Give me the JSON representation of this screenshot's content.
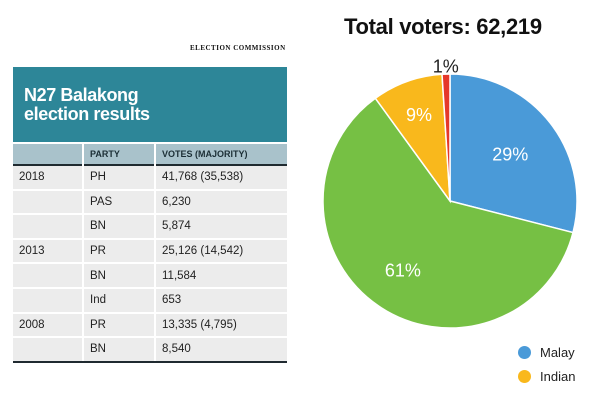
{
  "source": "ELECTION COMMISSION",
  "table": {
    "title_line1": "N27 Balakong",
    "title_line2": "election results",
    "headers": [
      "",
      "PARTY",
      "VOTES (MAJORITY)"
    ],
    "rows": [
      {
        "year": "2018",
        "party": "PH",
        "votes": "41,768 (35,538)"
      },
      {
        "year": "",
        "party": "PAS",
        "votes": "6,230"
      },
      {
        "year": "",
        "party": "BN",
        "votes": "5,874"
      },
      {
        "year": "2013",
        "party": "PR",
        "votes": "25,126 (14,542)"
      },
      {
        "year": "",
        "party": "BN",
        "votes": "11,584"
      },
      {
        "year": "",
        "party": "Ind",
        "votes": "653"
      },
      {
        "year": "2008",
        "party": "PR",
        "votes": "13,335 (4,795)"
      },
      {
        "year": "",
        "party": "BN",
        "votes": "8,540"
      }
    ]
  },
  "chart_data": {
    "type": "pie",
    "title": "Total voters: 62,219",
    "slices": [
      {
        "label": "Malay",
        "value": 29,
        "display": "29%",
        "color": "#4a9ad8"
      },
      {
        "label": "",
        "value": 61,
        "display": "61%",
        "color": "#76c044"
      },
      {
        "label": "Indian",
        "value": 9,
        "display": "9%",
        "color": "#f9b81c"
      },
      {
        "label": "",
        "value": 1,
        "display": "1%",
        "color": "#e5382a"
      }
    ],
    "legend": [
      {
        "label": "Malay",
        "color": "#4a9ad8"
      },
      {
        "label": "Indian",
        "color": "#f9b81c"
      }
    ],
    "legend_position": "bottom-right"
  }
}
